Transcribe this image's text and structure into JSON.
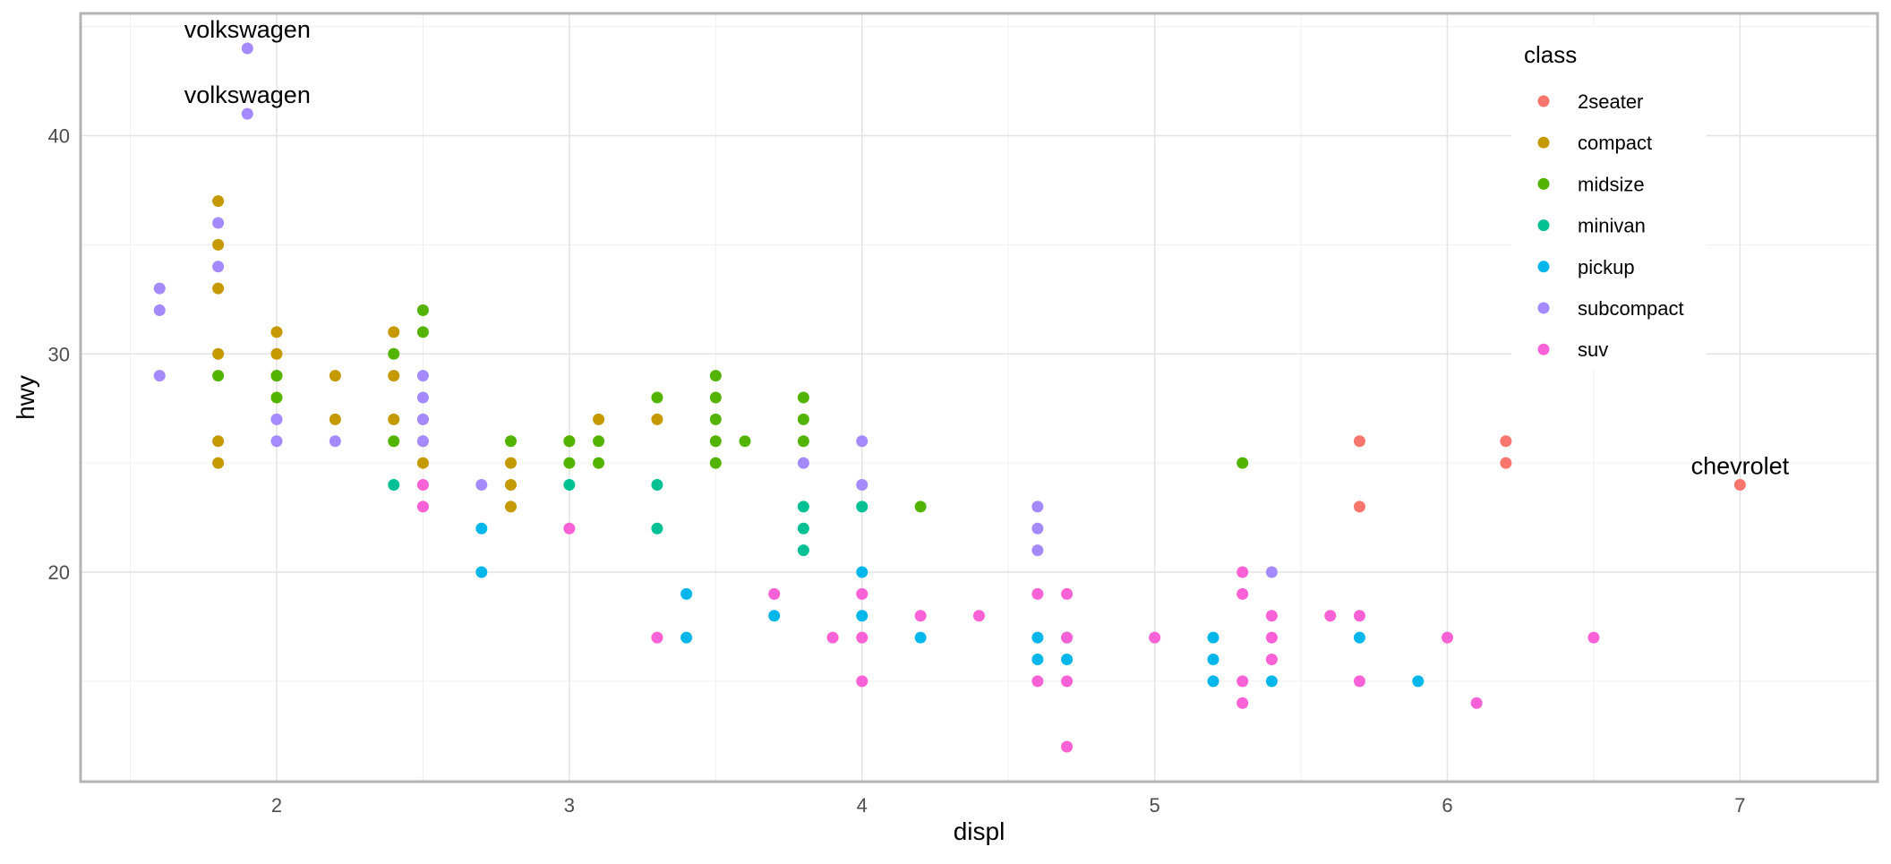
{
  "chart_data": {
    "type": "scatter",
    "xlabel": "displ",
    "ylabel": "hwy",
    "xlim": [
      1.33,
      7.47
    ],
    "ylim": [
      10.4,
      45.6
    ],
    "x_ticks": [
      2,
      3,
      4,
      5,
      6,
      7
    ],
    "y_ticks": [
      20,
      30,
      40
    ],
    "x_minor_ticks": [
      1.5,
      2.5,
      3.5,
      4.5,
      5.5,
      6.5
    ],
    "y_minor_ticks": [
      15,
      25,
      35,
      45
    ],
    "grid": true,
    "legend": {
      "title": "class",
      "placement": "top-right"
    },
    "series": [
      {
        "name": "2seater",
        "color": "#F8766D",
        "points": [
          [
            5.7,
            26
          ],
          [
            5.7,
            23
          ],
          [
            6.2,
            26
          ],
          [
            6.2,
            25
          ],
          [
            7.0,
            24
          ]
        ]
      },
      {
        "name": "compact",
        "color": "#C49A00",
        "points": [
          [
            1.8,
            37
          ],
          [
            1.8,
            35
          ],
          [
            1.8,
            33
          ],
          [
            1.8,
            30
          ],
          [
            1.8,
            26
          ],
          [
            1.8,
            25
          ],
          [
            2.0,
            31
          ],
          [
            2.0,
            30
          ],
          [
            2.0,
            29
          ],
          [
            2.2,
            29
          ],
          [
            2.2,
            27
          ],
          [
            2.4,
            31
          ],
          [
            2.4,
            29
          ],
          [
            2.4,
            27
          ],
          [
            2.5,
            27
          ],
          [
            2.5,
            26
          ],
          [
            2.5,
            25
          ],
          [
            2.8,
            25
          ],
          [
            2.8,
            24
          ],
          [
            2.8,
            23
          ],
          [
            3.0,
            26
          ],
          [
            3.1,
            27
          ],
          [
            3.3,
            27
          ]
        ]
      },
      {
        "name": "midsize",
        "color": "#53B400",
        "points": [
          [
            1.8,
            29
          ],
          [
            2.0,
            29
          ],
          [
            2.0,
            28
          ],
          [
            2.4,
            30
          ],
          [
            2.4,
            26
          ],
          [
            2.5,
            32
          ],
          [
            2.5,
            31
          ],
          [
            2.8,
            26
          ],
          [
            3.0,
            26
          ],
          [
            3.0,
            25
          ],
          [
            3.1,
            26
          ],
          [
            3.1,
            25
          ],
          [
            3.3,
            28
          ],
          [
            3.5,
            29
          ],
          [
            3.5,
            28
          ],
          [
            3.5,
            27
          ],
          [
            3.5,
            26
          ],
          [
            3.5,
            25
          ],
          [
            3.6,
            26
          ],
          [
            3.8,
            28
          ],
          [
            3.8,
            27
          ],
          [
            3.8,
            26
          ],
          [
            4.2,
            23
          ],
          [
            5.3,
            25
          ]
        ]
      },
      {
        "name": "minivan",
        "color": "#00C094",
        "points": [
          [
            2.4,
            24
          ],
          [
            3.0,
            24
          ],
          [
            3.3,
            24
          ],
          [
            3.3,
            22
          ],
          [
            3.8,
            23
          ],
          [
            3.8,
            22
          ],
          [
            3.8,
            21
          ],
          [
            4.0,
            23
          ]
        ]
      },
      {
        "name": "pickup",
        "color": "#00B6EB",
        "points": [
          [
            2.7,
            22
          ],
          [
            2.7,
            20
          ],
          [
            3.4,
            19
          ],
          [
            3.4,
            17
          ],
          [
            3.7,
            18
          ],
          [
            4.0,
            20
          ],
          [
            4.0,
            18
          ],
          [
            4.2,
            17
          ],
          [
            4.6,
            17
          ],
          [
            4.6,
            16
          ],
          [
            4.7,
            17
          ],
          [
            4.7,
            16
          ],
          [
            5.2,
            17
          ],
          [
            5.2,
            16
          ],
          [
            5.2,
            15
          ],
          [
            5.4,
            15
          ],
          [
            5.7,
            17
          ],
          [
            5.9,
            15
          ]
        ]
      },
      {
        "name": "subcompact",
        "color": "#A58AFF",
        "points": [
          [
            1.6,
            33
          ],
          [
            1.6,
            32
          ],
          [
            1.6,
            29
          ],
          [
            1.8,
            36
          ],
          [
            1.8,
            34
          ],
          [
            1.9,
            44
          ],
          [
            1.9,
            41
          ],
          [
            2.0,
            27
          ],
          [
            2.0,
            26
          ],
          [
            2.2,
            26
          ],
          [
            2.5,
            29
          ],
          [
            2.5,
            28
          ],
          [
            2.5,
            27
          ],
          [
            2.5,
            26
          ],
          [
            2.7,
            24
          ],
          [
            3.8,
            25
          ],
          [
            4.0,
            26
          ],
          [
            4.0,
            24
          ],
          [
            4.6,
            23
          ],
          [
            4.6,
            22
          ],
          [
            4.6,
            21
          ],
          [
            5.4,
            20
          ]
        ]
      },
      {
        "name": "suv",
        "color": "#FB61D7",
        "points": [
          [
            2.5,
            24
          ],
          [
            2.5,
            23
          ],
          [
            3.0,
            22
          ],
          [
            3.3,
            17
          ],
          [
            3.7,
            19
          ],
          [
            3.9,
            17
          ],
          [
            4.0,
            19
          ],
          [
            4.0,
            17
          ],
          [
            4.0,
            15
          ],
          [
            4.2,
            18
          ],
          [
            4.4,
            18
          ],
          [
            4.6,
            19
          ],
          [
            4.6,
            15
          ],
          [
            4.7,
            19
          ],
          [
            4.7,
            17
          ],
          [
            4.7,
            15
          ],
          [
            4.7,
            12
          ],
          [
            5.0,
            17
          ],
          [
            5.3,
            20
          ],
          [
            5.3,
            19
          ],
          [
            5.3,
            15
          ],
          [
            5.3,
            14
          ],
          [
            5.4,
            18
          ],
          [
            5.4,
            17
          ],
          [
            5.4,
            16
          ],
          [
            5.6,
            18
          ],
          [
            5.7,
            18
          ],
          [
            5.7,
            15
          ],
          [
            6.0,
            17
          ],
          [
            6.1,
            14
          ],
          [
            6.5,
            17
          ]
        ]
      }
    ],
    "annotations": [
      {
        "text": "volkswagen",
        "x": 1.9,
        "y": 44
      },
      {
        "text": "volkswagen",
        "x": 1.9,
        "y": 41
      },
      {
        "text": "chevrolet",
        "x": 7.0,
        "y": 24
      }
    ]
  }
}
